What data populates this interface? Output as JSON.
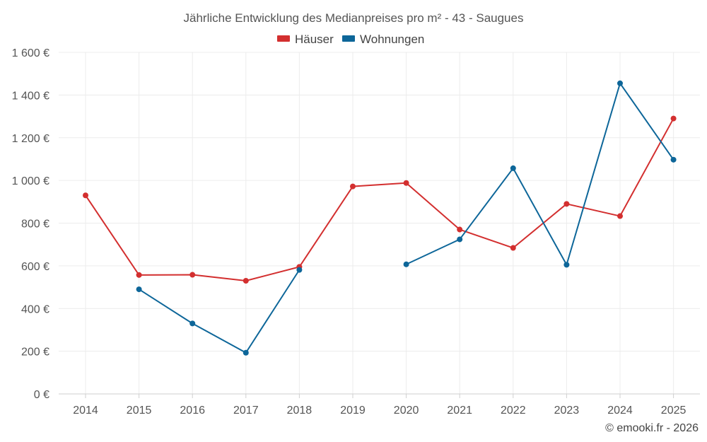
{
  "chart_data": {
    "type": "line",
    "title": "Jährliche Entwicklung des Medianpreises pro m² - 43 - Saugues",
    "categories": [
      "2014",
      "2015",
      "2016",
      "2017",
      "2018",
      "2019",
      "2020",
      "2021",
      "2022",
      "2023",
      "2024",
      "2025"
    ],
    "ylim": [
      0,
      1600
    ],
    "yticks": [
      0,
      200,
      400,
      600,
      800,
      1000,
      1200,
      1400,
      1600
    ],
    "ytick_labels": [
      "0 €",
      "200 €",
      "400 €",
      "600 €",
      "800 €",
      "1 000 €",
      "1 200 €",
      "1 400 €",
      "1 600 €"
    ],
    "legend_position": "top-center",
    "grid": true,
    "series": [
      {
        "name": "Häuser",
        "color": "#d32f2f",
        "values": [
          930,
          557,
          558,
          530,
          595,
          972,
          988,
          770,
          684,
          890,
          833,
          1290
        ]
      },
      {
        "name": "Wohnungen",
        "color": "#0d6699",
        "values": [
          null,
          490,
          330,
          193,
          581,
          null,
          607,
          724,
          1057,
          605,
          1455,
          1097
        ]
      }
    ],
    "credit": "© emooki.fr - 2026"
  }
}
